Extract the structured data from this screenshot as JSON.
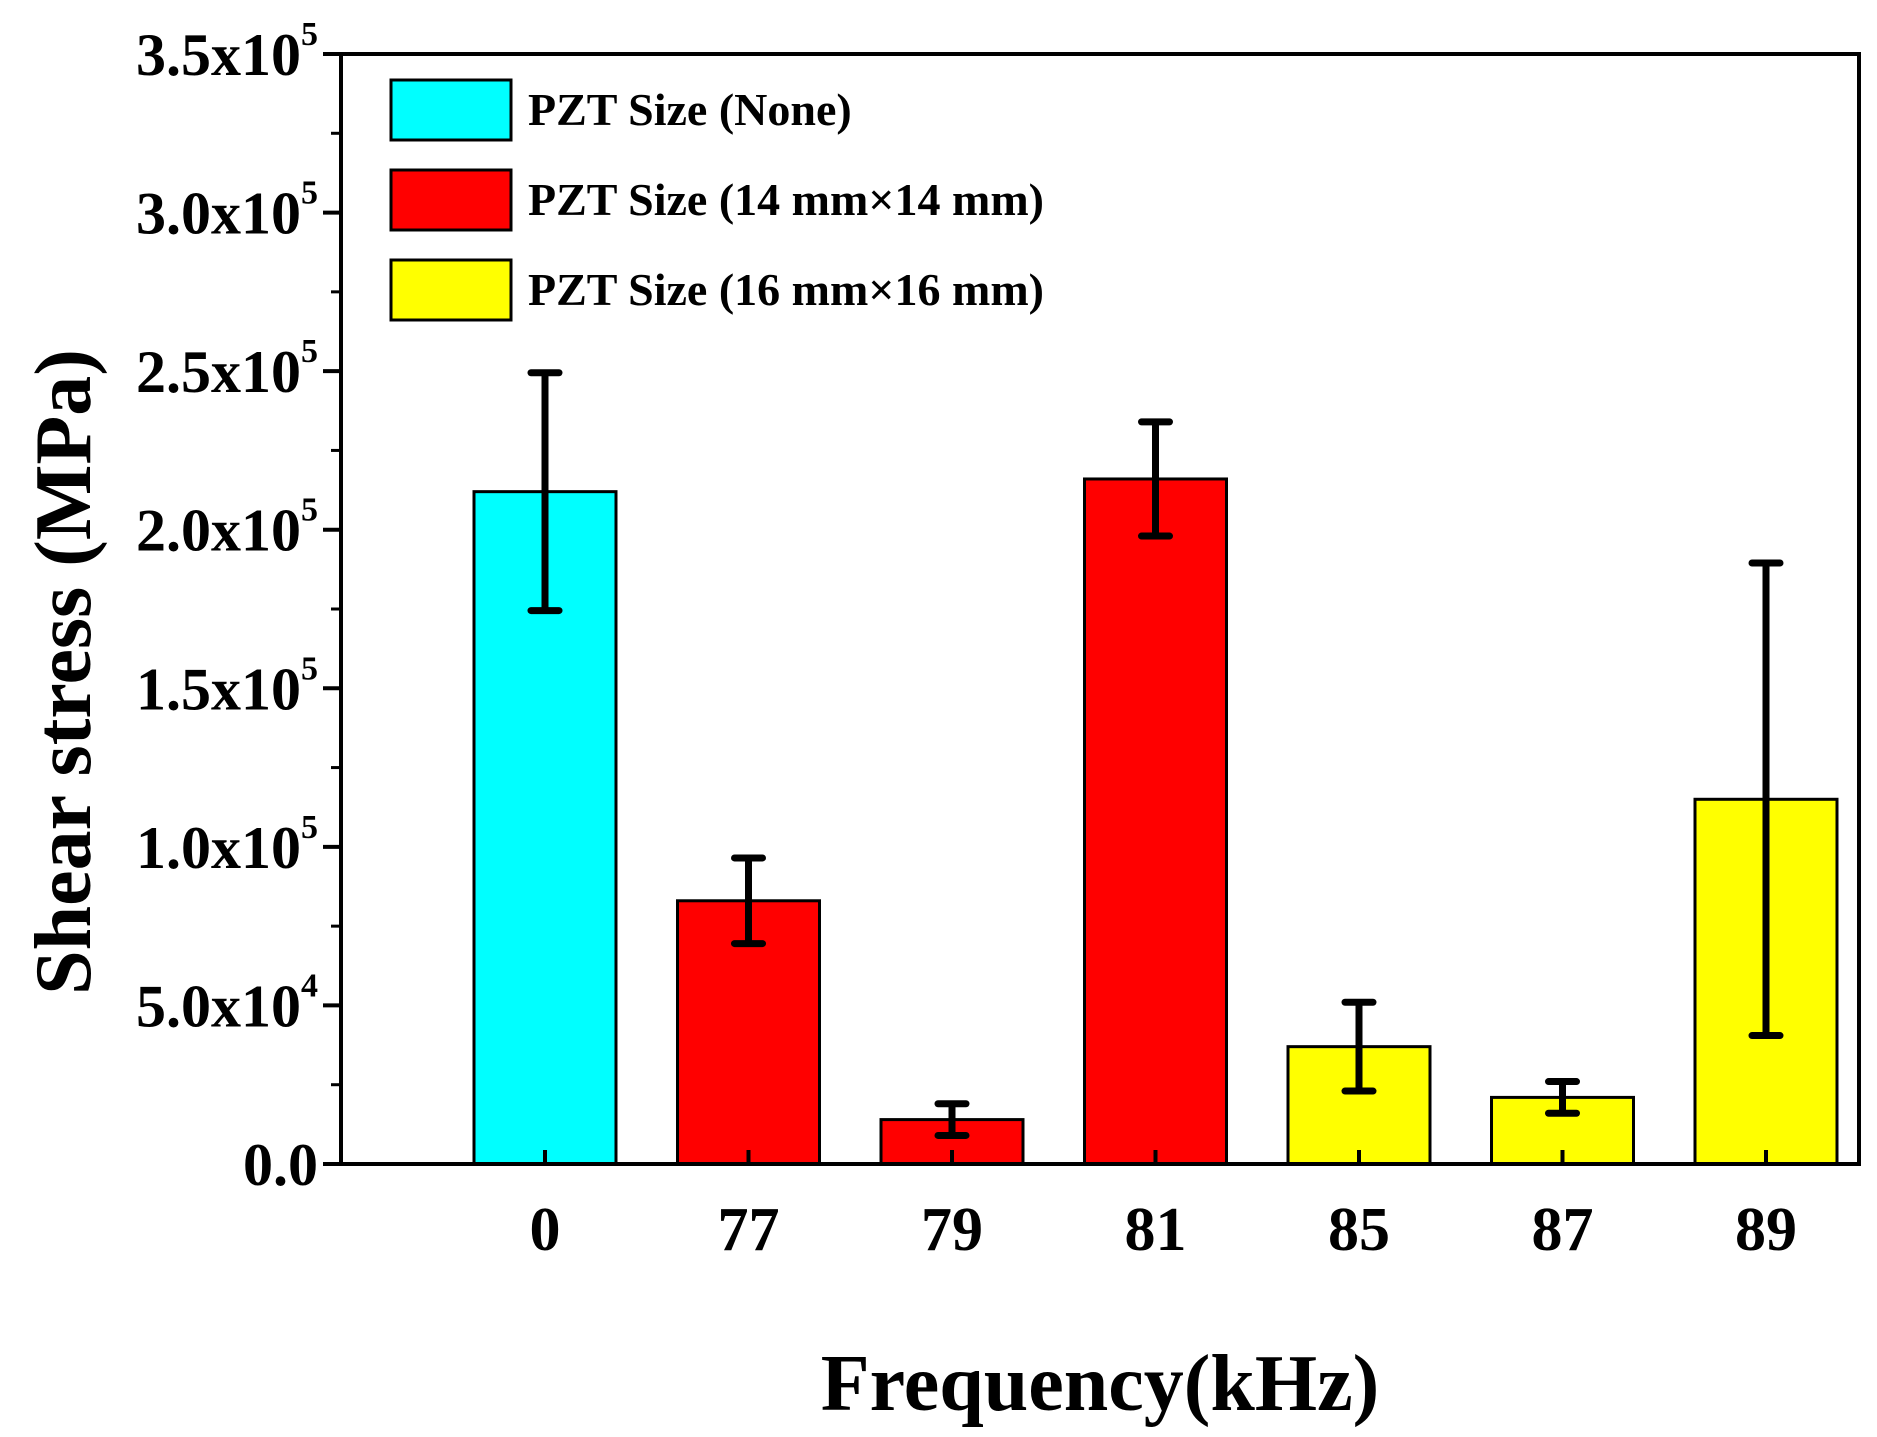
{
  "chart_data": {
    "type": "bar",
    "xlabel": "Frequency(kHz)",
    "ylabel": "Shear stress (MPa)",
    "categories": [
      "0",
      "77",
      "79",
      "81",
      "85",
      "87",
      "89"
    ],
    "values": [
      212000,
      83000,
      14000,
      216000,
      37000,
      21000,
      115000
    ],
    "error": [
      37500,
      13500,
      5000,
      18000,
      14000,
      5000,
      74500
    ],
    "bar_series": [
      0,
      1,
      1,
      1,
      2,
      2,
      2
    ],
    "series": [
      {
        "name": "PZT Size (None)",
        "color": "#00ffff"
      },
      {
        "name": "PZT Size (14 mm×14 mm)",
        "color": "#ff0000"
      },
      {
        "name": "PZT Size (16 mm×16 mm)",
        "color": "#ffff00"
      }
    ],
    "ylim": [
      0,
      350000
    ],
    "y_ticks": [
      {
        "value": 0,
        "mant": "0.0",
        "exp": ""
      },
      {
        "value": 50000,
        "mant": "5.0x10",
        "exp": "4"
      },
      {
        "value": 100000,
        "mant": "1.0x10",
        "exp": "5"
      },
      {
        "value": 150000,
        "mant": "1.5x10",
        "exp": "5"
      },
      {
        "value": 200000,
        "mant": "2.0x10",
        "exp": "5"
      },
      {
        "value": 250000,
        "mant": "2.5x10",
        "exp": "5"
      },
      {
        "value": 300000,
        "mant": "3.0x10",
        "exp": "5"
      },
      {
        "value": 350000,
        "mant": "3.5x10",
        "exp": "5"
      }
    ],
    "legend_position": "top-left",
    "grid": false
  }
}
